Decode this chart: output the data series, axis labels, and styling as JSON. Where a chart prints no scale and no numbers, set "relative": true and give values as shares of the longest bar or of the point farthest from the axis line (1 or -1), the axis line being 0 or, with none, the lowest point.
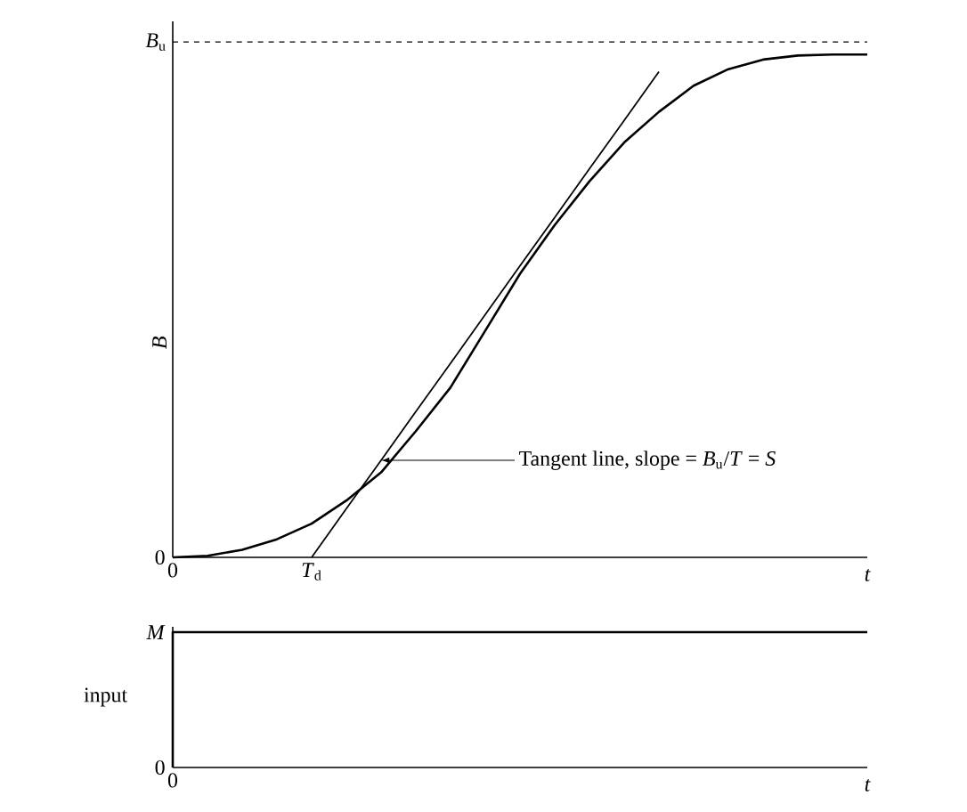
{
  "chart_data": [
    {
      "type": "line",
      "relative": true,
      "xlabel": "t",
      "ylabel": "B",
      "categories": [
        null,
        null,
        null,
        null,
        null,
        null,
        null,
        null,
        null,
        null,
        null,
        null,
        null,
        null,
        null,
        null,
        null,
        null,
        null,
        null,
        null
      ],
      "series": [
        {
          "color": "#000000",
          "values": [
            0,
            0.003,
            0.015,
            0.036,
            0.067,
            0.113,
            0.169,
            0.251,
            0.338,
            0.451,
            0.564,
            0.661,
            0.748,
            0.825,
            0.886,
            0.938,
            0.971,
            0.99,
            0.998,
            1,
            1
          ]
        },
        {
          "color": "#000000",
          "values": [
            null,
            null,
            null,
            null,
            0,
            0.097,
            0.193,
            0.29,
            0.386,
            0.483,
            0.58,
            0.676,
            0.773,
            0.869,
            0.966,
            null,
            null,
            null,
            null,
            null,
            null
          ]
        }
      ],
      "ref_lines": [
        {
          "axis": "y",
          "value": 1.025,
          "label": "*B*$_{u}$",
          "color": "#000000",
          "line_style": "dashed"
        }
      ],
      "annotations": [
        "Tangent line, slope = *B*$_{u}$/*T* = *S*",
        "*T*$_{d}$",
        "0",
        "0"
      ]
    },
    {
      "type": "step",
      "relative": true,
      "xlabel": "t",
      "ylabel": "input",
      "categories": [
        null,
        null
      ],
      "series": [
        {
          "color": "#000000",
          "values": [
            0,
            1
          ]
        }
      ],
      "annotations": [
        "*M*",
        "0",
        "0"
      ]
    }
  ]
}
